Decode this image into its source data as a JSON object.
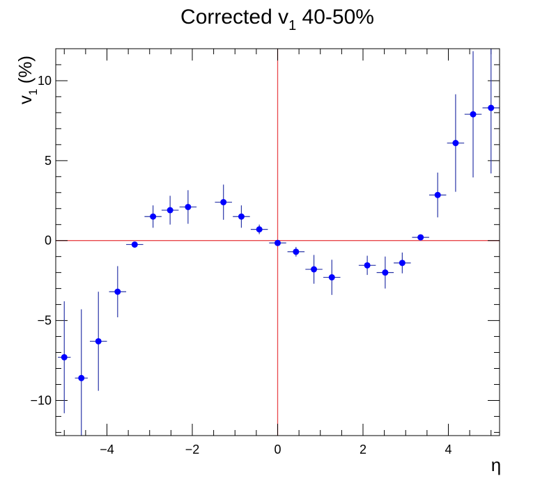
{
  "chart_data": {
    "type": "scatter",
    "title": "Corrected v",
    "title_subscript": "1",
    "title_suffix": " 40-50%",
    "xlabel": "η",
    "ylabel": "v",
    "ylabel_subscript": "1",
    "ylabel_suffix": " (%)",
    "xlim": [
      -5.2,
      5.2
    ],
    "ylim": [
      -12.2,
      12.0
    ],
    "x_major_ticks": [
      -4,
      -2,
      0,
      2,
      4
    ],
    "x_tick_labels": [
      "−4",
      "−2",
      "0",
      "2",
      "4"
    ],
    "y_major_ticks": [
      -10,
      -5,
      0,
      5,
      10
    ],
    "y_tick_labels": [
      "−10",
      "−5",
      "0",
      "5",
      "10"
    ],
    "grid": false,
    "reference_lines": {
      "x": 0,
      "y": 0,
      "color": "#e8474b"
    },
    "marker_color": "#0000ff",
    "errorbar_color": "#2a36a8",
    "series": [
      {
        "points": [
          {
            "x": -5.0,
            "y": -7.3,
            "xerr": 0.15,
            "yerr": 3.5
          },
          {
            "x": -4.6,
            "y": -8.6,
            "xerr": 0.15,
            "yerr": 4.3
          },
          {
            "x": -4.2,
            "y": -6.3,
            "xerr": 0.2,
            "yerr": 3.1
          },
          {
            "x": -3.75,
            "y": -3.2,
            "xerr": 0.2,
            "yerr": 1.6
          },
          {
            "x": -3.35,
            "y": -0.25,
            "xerr": 0.2,
            "yerr": 0.15
          },
          {
            "x": -2.92,
            "y": 1.5,
            "xerr": 0.2,
            "yerr": 0.7
          },
          {
            "x": -2.52,
            "y": 1.9,
            "xerr": 0.2,
            "yerr": 0.9
          },
          {
            "x": -2.1,
            "y": 2.1,
            "xerr": 0.2,
            "yerr": 1.05
          },
          {
            "x": -1.27,
            "y": 2.4,
            "xerr": 0.2,
            "yerr": 1.1
          },
          {
            "x": -0.85,
            "y": 1.5,
            "xerr": 0.2,
            "yerr": 0.7
          },
          {
            "x": -0.43,
            "y": 0.7,
            "xerr": 0.2,
            "yerr": 0.3
          },
          {
            "x": 0.0,
            "y": -0.15,
            "xerr": 0.2,
            "yerr": 0.1
          },
          {
            "x": 0.43,
            "y": -0.7,
            "xerr": 0.2,
            "yerr": 0.3
          },
          {
            "x": 0.85,
            "y": -1.8,
            "xerr": 0.2,
            "yerr": 0.9
          },
          {
            "x": 1.27,
            "y": -2.3,
            "xerr": 0.2,
            "yerr": 1.1
          },
          {
            "x": 2.1,
            "y": -1.55,
            "xerr": 0.2,
            "yerr": 0.6
          },
          {
            "x": 2.52,
            "y": -2.0,
            "xerr": 0.2,
            "yerr": 1.0
          },
          {
            "x": 2.92,
            "y": -1.4,
            "xerr": 0.2,
            "yerr": 0.65
          },
          {
            "x": 3.35,
            "y": 0.2,
            "xerr": 0.2,
            "yerr": 0.15
          },
          {
            "x": 3.75,
            "y": 2.85,
            "xerr": 0.2,
            "yerr": 1.4
          },
          {
            "x": 4.17,
            "y": 6.1,
            "xerr": 0.2,
            "yerr": 3.05
          },
          {
            "x": 4.58,
            "y": 7.9,
            "xerr": 0.2,
            "yerr": 3.95
          },
          {
            "x": 5.0,
            "y": 8.3,
            "xerr": 0.2,
            "yerr": 4.1
          }
        ]
      }
    ]
  }
}
